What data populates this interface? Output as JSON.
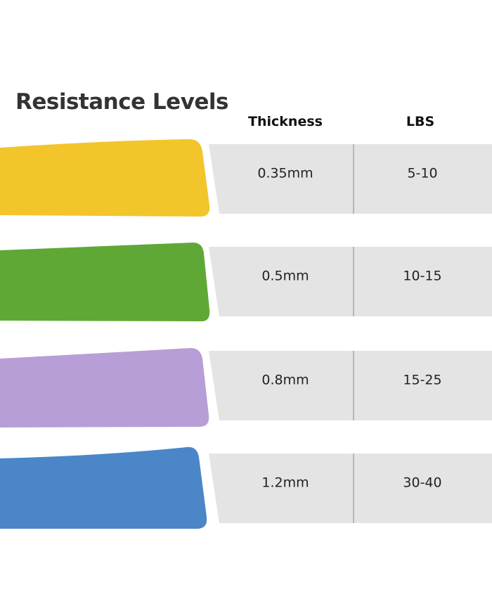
{
  "header": {
    "title": "Resistance Levels",
    "columns": [
      "Thickness",
      "LBS"
    ]
  },
  "table": {
    "rows": [
      [
        "0.35mm",
        "5-10"
      ],
      [
        "0.5mm",
        "10-15"
      ],
      [
        "0.8mm",
        "15-25"
      ],
      [
        "1.2mm",
        "30-40"
      ]
    ]
  }
}
